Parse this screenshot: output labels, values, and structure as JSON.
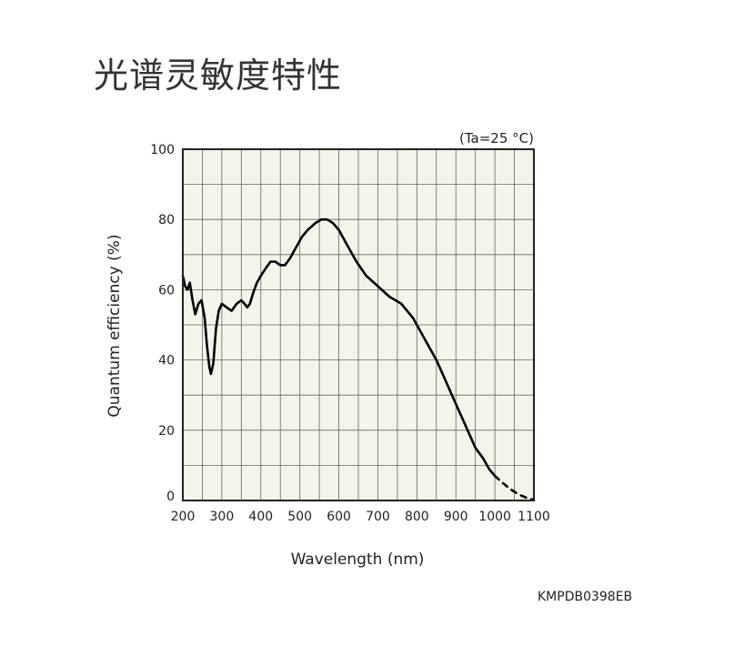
{
  "page": {
    "title": "光谱灵敏度特性",
    "doc_code": "KMPDB0398EB"
  },
  "chart_data": {
    "type": "line",
    "title": "",
    "condition_note": "(Ta=25 °C)",
    "xlabel": "Wavelength (nm)",
    "ylabel": "Quantum efficiency (%)",
    "xlim": [
      200,
      1100
    ],
    "ylim": [
      0,
      100
    ],
    "x_ticks": [
      200,
      300,
      400,
      500,
      600,
      700,
      800,
      900,
      1000,
      1100
    ],
    "y_ticks": [
      0,
      20,
      40,
      60,
      80,
      100
    ],
    "x_grid_step": 50,
    "y_grid_step": 10,
    "grid": true,
    "plot_background": "#f5f4ea",
    "line_color": "#000000",
    "series": [
      {
        "style": "solid",
        "x": [
          200,
          206,
          212,
          218,
          225,
          232,
          240,
          248,
          256,
          262,
          268,
          272,
          278,
          285,
          292,
          300,
          312,
          325,
          338,
          350,
          358,
          365,
          372,
          380,
          390,
          400,
          412,
          425,
          437,
          450,
          462,
          475,
          490,
          505,
          520,
          540,
          555,
          570,
          585,
          600,
          620,
          645,
          670,
          700,
          730,
          760,
          790,
          810,
          830,
          850,
          870,
          890,
          910,
          930,
          950,
          970,
          985,
          1000
        ],
        "y": [
          64,
          61,
          60,
          62,
          57,
          53,
          56,
          57,
          52,
          44,
          38,
          36,
          39,
          49,
          54,
          56,
          55,
          54,
          56,
          57,
          56,
          55,
          56,
          59,
          62,
          64,
          66,
          68,
          68,
          67,
          67,
          69,
          72,
          75,
          77,
          79,
          80,
          80,
          79,
          77,
          73,
          68,
          64,
          61,
          58,
          56,
          52,
          48,
          44,
          40,
          35,
          30,
          25,
          20,
          15,
          12,
          9,
          7
        ]
      },
      {
        "style": "dashed",
        "x": [
          1000,
          1020,
          1040,
          1060,
          1080,
          1090,
          1100
        ],
        "y": [
          7,
          5,
          3.2,
          1.8,
          0.8,
          0.4,
          0.2
        ]
      }
    ]
  }
}
